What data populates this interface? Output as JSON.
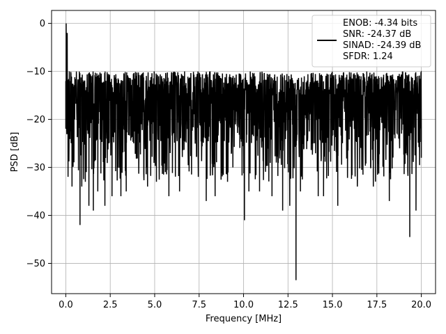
{
  "chart_data": {
    "type": "line",
    "title": "",
    "xlabel": "Frequency [MHz]",
    "ylabel": "PSD [dB]",
    "xlim": [
      -0.8,
      20.8
    ],
    "ylim": [
      -56.3,
      2.7
    ],
    "x_ticks": [
      0.0,
      2.5,
      5.0,
      7.5,
      10.0,
      12.5,
      15.0,
      17.5,
      20.0
    ],
    "x_tick_labels": [
      "0.0",
      "2.5",
      "5.0",
      "7.5",
      "10.0",
      "12.5",
      "15.0",
      "17.5",
      "20.0"
    ],
    "y_ticks": [
      0,
      -10,
      -20,
      -30,
      -40,
      -50
    ],
    "y_tick_labels": [
      "0",
      "−10",
      "−20",
      "−30",
      "−40",
      "−50"
    ],
    "grid": true,
    "legend_position": "top-right",
    "series": [
      {
        "name": "ENOB: -4.34 bits\nSNR: -24.37 dB\nSINAD: -24.39 dB\nSFDR: 1.24",
        "color": "#000000",
        "x_range": [
          0.0,
          20.0
        ],
        "n_points": 2048,
        "typical_upper": -10,
        "typical_lower": -25,
        "points": [
          [
            0.0,
            -12
          ],
          [
            0.02,
            0
          ],
          [
            0.04,
            -8
          ],
          [
            0.08,
            -2
          ],
          [
            0.12,
            -12
          ],
          [
            0.15,
            -20
          ],
          [
            0.2,
            -10
          ],
          [
            0.3,
            -18
          ],
          [
            0.35,
            -34
          ],
          [
            0.5,
            -20
          ],
          [
            0.8,
            -42
          ],
          [
            0.9,
            -34
          ],
          [
            1.1,
            -33
          ],
          [
            1.3,
            -38
          ],
          [
            1.55,
            -39
          ],
          [
            1.8,
            -35
          ],
          [
            2.2,
            -38
          ],
          [
            2.6,
            -36
          ],
          [
            3.1,
            -36
          ],
          [
            3.4,
            -35
          ],
          [
            4.6,
            -34
          ],
          [
            5.1,
            -33
          ],
          [
            5.8,
            -36
          ],
          [
            6.4,
            -35
          ],
          [
            7.9,
            -37
          ],
          [
            8.4,
            -36
          ],
          [
            9.1,
            -33
          ],
          [
            10.05,
            -41
          ],
          [
            10.3,
            -35
          ],
          [
            10.9,
            -35
          ],
          [
            11.6,
            -36
          ],
          [
            12.2,
            -39
          ],
          [
            12.6,
            -38
          ],
          [
            12.95,
            -53.5
          ],
          [
            13.2,
            -35
          ],
          [
            14.2,
            -36
          ],
          [
            14.5,
            -36
          ],
          [
            15.3,
            -38
          ],
          [
            16.4,
            -34
          ],
          [
            17.3,
            -34
          ],
          [
            18.2,
            -37
          ],
          [
            19.35,
            -44.5
          ],
          [
            19.7,
            -39
          ],
          [
            20.0,
            -28
          ]
        ]
      }
    ]
  }
}
